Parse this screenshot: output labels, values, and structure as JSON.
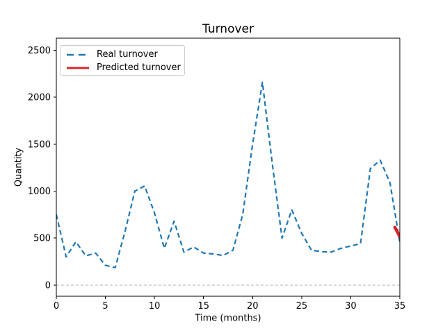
{
  "figure": {
    "background": "#ffffff"
  },
  "chart_data": {
    "type": "line",
    "title": "Turnover",
    "xlabel": "Time (months)",
    "ylabel": "Quantity",
    "xlim": [
      0,
      35
    ],
    "ylim": [
      -120,
      2630
    ],
    "xticks": [
      0,
      5,
      10,
      15,
      20,
      25,
      30,
      35
    ],
    "yticks": [
      0,
      500,
      1000,
      1500,
      2000,
      2500
    ],
    "grid": false,
    "legend_position": "upper left",
    "zero_line": {
      "y": 0,
      "color": "#b0b0b0",
      "style": "dashed"
    },
    "series": [
      {
        "name": "Real turnover",
        "color": "#1f77b4",
        "style": "dashed",
        "x": [
          0,
          1,
          2,
          3,
          4,
          5,
          6,
          7,
          8,
          9,
          10,
          11,
          12,
          13,
          14,
          15,
          16,
          17,
          18,
          19,
          20,
          21,
          22,
          23,
          24,
          25,
          26,
          27,
          28,
          29,
          30,
          31,
          32,
          33,
          34,
          35
        ],
        "y": [
          750,
          300,
          460,
          310,
          340,
          210,
          185,
          570,
          1000,
          1055,
          770,
          390,
          680,
          350,
          405,
          340,
          330,
          315,
          370,
          755,
          1500,
          2160,
          1300,
          500,
          800,
          550,
          370,
          355,
          350,
          390,
          415,
          440,
          1240,
          1330,
          1090,
          455
        ]
      },
      {
        "name": "Predicted turnover",
        "color": "#d62728",
        "style": "solid",
        "x": [
          34.5,
          35
        ],
        "y": [
          615,
          515
        ]
      }
    ]
  }
}
